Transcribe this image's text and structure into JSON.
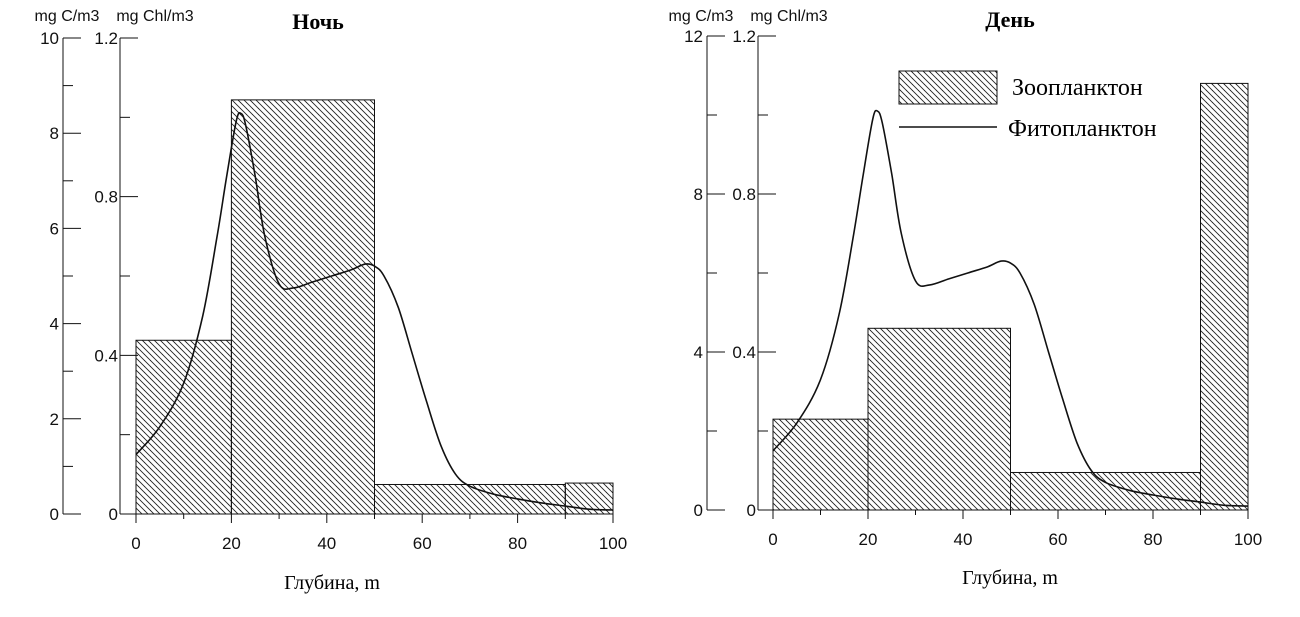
{
  "chart_data": [
    {
      "type": "bar",
      "title": "Ночь",
      "xlabel": "Глубина, m",
      "x_ticks": [
        0,
        20,
        40,
        60,
        80,
        100
      ],
      "xlim": [
        0,
        100
      ],
      "left_axis": {
        "unit": "mg C/m3",
        "ylim": [
          0,
          10
        ],
        "ticks": [
          0,
          2,
          4,
          6,
          8,
          10
        ]
      },
      "right_axis": {
        "unit": "mg Chl/m3",
        "ylim": [
          0,
          1.2
        ],
        "ticks": [
          "0",
          "0.4",
          "0.8",
          "1.2"
        ]
      },
      "series": [
        {
          "name": "Зоопланктон",
          "type": "bar",
          "axis": "left",
          "bins": [
            {
              "from": 0,
              "to": 20,
              "value": 3.65
            },
            {
              "from": 20,
              "to": 50,
              "value": 8.7
            },
            {
              "from": 50,
              "to": 90,
              "value": 0.62
            },
            {
              "from": 90,
              "to": 100,
              "value": 0.65
            }
          ]
        },
        {
          "name": "Фитопланктон",
          "type": "line",
          "axis": "right",
          "points": [
            [
              0,
              0.15
            ],
            [
              5,
              0.22
            ],
            [
              10,
              0.33
            ],
            [
              14,
              0.5
            ],
            [
              17,
              0.7
            ],
            [
              19,
              0.85
            ],
            [
              21,
              0.99
            ],
            [
              22,
              1.01
            ],
            [
              23,
              0.98
            ],
            [
              25,
              0.85
            ],
            [
              27,
              0.7
            ],
            [
              30,
              0.58
            ],
            [
              33,
              0.57
            ],
            [
              37,
              0.585
            ],
            [
              41,
              0.6
            ],
            [
              45,
              0.615
            ],
            [
              48,
              0.63
            ],
            [
              50,
              0.625
            ],
            [
              52,
              0.6
            ],
            [
              55,
              0.52
            ],
            [
              58,
              0.4
            ],
            [
              61,
              0.28
            ],
            [
              64,
              0.17
            ],
            [
              67,
              0.1
            ],
            [
              70,
              0.07
            ],
            [
              75,
              0.05
            ],
            [
              80,
              0.038
            ],
            [
              85,
              0.028
            ],
            [
              90,
              0.02
            ],
            [
              95,
              0.012
            ],
            [
              100,
              0.01
            ]
          ]
        }
      ]
    },
    {
      "type": "bar",
      "title": "День",
      "xlabel": "Глубина, m",
      "x_ticks": [
        0,
        20,
        40,
        60,
        80,
        100
      ],
      "xlim": [
        0,
        100
      ],
      "left_axis": {
        "unit": "mg C/m3",
        "ylim": [
          0,
          12
        ],
        "ticks": [
          0,
          4,
          8,
          12
        ]
      },
      "right_axis": {
        "unit": "mg Chl/m3",
        "ylim": [
          0,
          1.2
        ],
        "ticks": [
          "0",
          "0.4",
          "0.8",
          "1.2"
        ]
      },
      "legend": {
        "placement": "top-right",
        "entries": [
          {
            "label": "Зоопланктон",
            "kind": "hatched-box"
          },
          {
            "label": "Фитопланктон",
            "kind": "line"
          }
        ]
      },
      "series": [
        {
          "name": "Зоопланктон",
          "type": "bar",
          "axis": "left",
          "bins": [
            {
              "from": 0,
              "to": 20,
              "value": 2.3
            },
            {
              "from": 20,
              "to": 50,
              "value": 4.6
            },
            {
              "from": 50,
              "to": 90,
              "value": 0.95
            },
            {
              "from": 90,
              "to": 100,
              "value": 10.8
            }
          ]
        },
        {
          "name": "Фитопланктон",
          "type": "line",
          "axis": "right",
          "points": [
            [
              0,
              0.15
            ],
            [
              5,
              0.22
            ],
            [
              10,
              0.33
            ],
            [
              14,
              0.5
            ],
            [
              17,
              0.7
            ],
            [
              19,
              0.85
            ],
            [
              21,
              0.99
            ],
            [
              22,
              1.01
            ],
            [
              23,
              0.98
            ],
            [
              25,
              0.85
            ],
            [
              27,
              0.7
            ],
            [
              30,
              0.58
            ],
            [
              33,
              0.57
            ],
            [
              37,
              0.585
            ],
            [
              41,
              0.6
            ],
            [
              45,
              0.615
            ],
            [
              48,
              0.63
            ],
            [
              50,
              0.625
            ],
            [
              52,
              0.6
            ],
            [
              55,
              0.52
            ],
            [
              58,
              0.4
            ],
            [
              61,
              0.28
            ],
            [
              64,
              0.17
            ],
            [
              67,
              0.1
            ],
            [
              70,
              0.07
            ],
            [
              75,
              0.05
            ],
            [
              80,
              0.038
            ],
            [
              85,
              0.028
            ],
            [
              90,
              0.02
            ],
            [
              95,
              0.012
            ],
            [
              100,
              0.01
            ]
          ]
        }
      ]
    }
  ]
}
